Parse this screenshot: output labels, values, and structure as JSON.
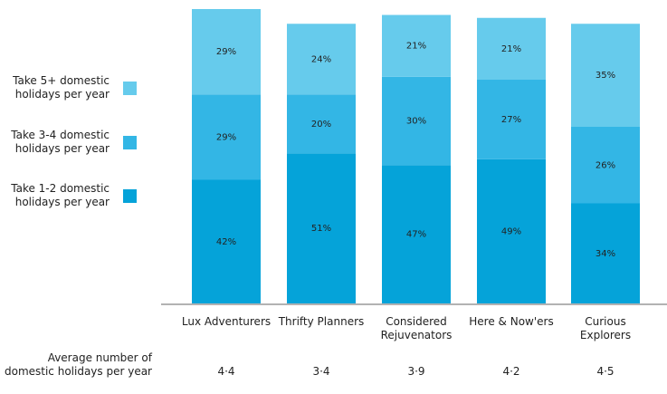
{
  "chart_data": {
    "type": "stacked-bar",
    "categories": [
      "Lux Adventurers",
      "Thrifty Planners",
      "Considered Rejuvenators",
      "Here & Now'ers",
      "Curious Explorers"
    ],
    "series": [
      {
        "name": "Take 1-2 domestic holidays per year",
        "color": "#05a3d9",
        "values": [
          42,
          51,
          47,
          49,
          34
        ],
        "value_labels": [
          "42%",
          "51%",
          "47%",
          "49%",
          "34%"
        ]
      },
      {
        "name": "Take 3-4 domestic holidays per year",
        "color": "#33b6e5",
        "values": [
          29,
          20,
          30,
          27,
          26
        ],
        "value_labels": [
          "29%",
          "20%",
          "30%",
          "27%",
          "26%"
        ]
      },
      {
        "name": "Take 5+ domestic holidays per year",
        "color": "#66cbec",
        "values": [
          29,
          24,
          21,
          21,
          35
        ],
        "value_labels": [
          "29%",
          "24%",
          "21%",
          "21%",
          "35%"
        ]
      }
    ],
    "average_row": {
      "label": "Average number of domestic holidays per year",
      "values": [
        "4·4",
        "3·4",
        "3·9",
        "4·2",
        "4·5"
      ]
    }
  }
}
